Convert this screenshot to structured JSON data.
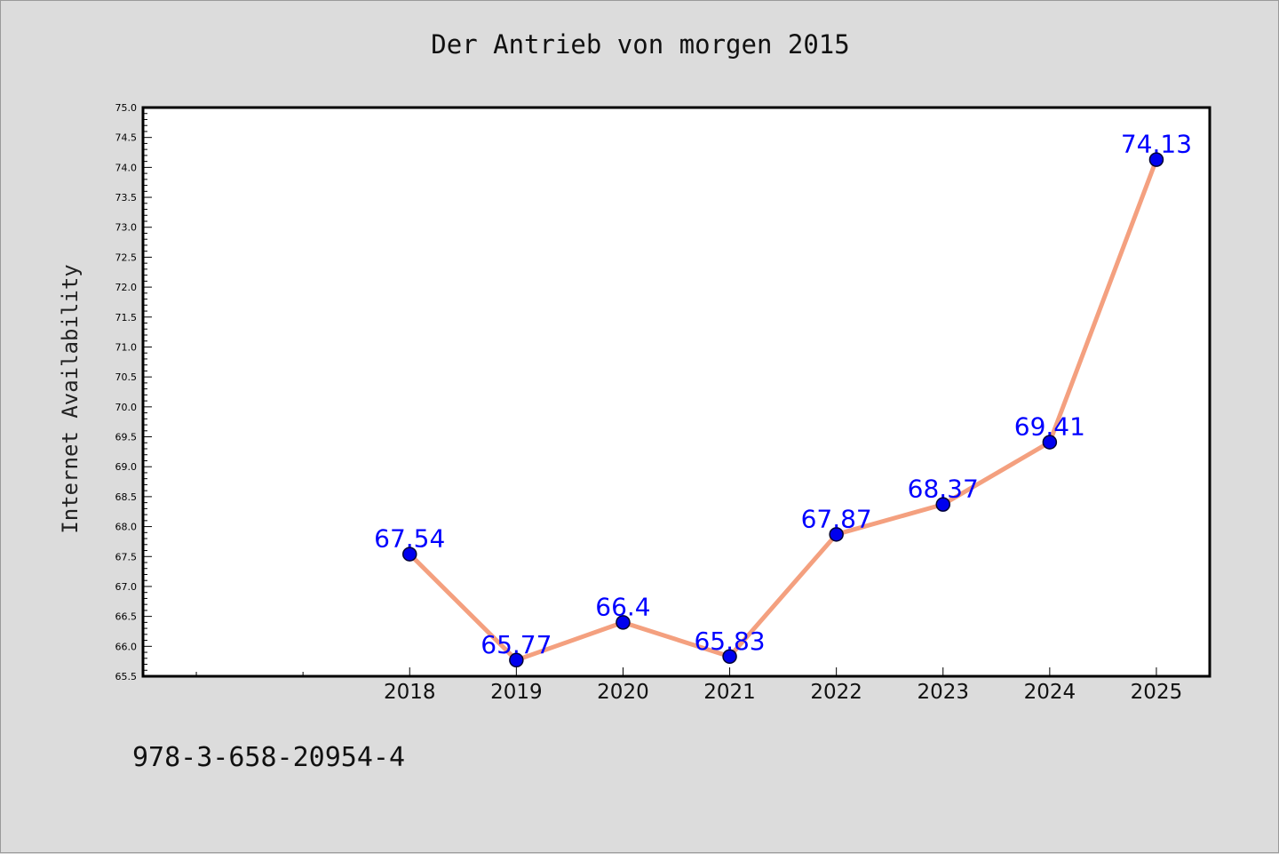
{
  "figure": {
    "title": "Der Antrieb von morgen 2015",
    "footer_text": "978-3-658-20954-4"
  },
  "chart_data": {
    "type": "line",
    "title": "Der Antrieb von morgen 2015",
    "xlabel": "",
    "ylabel": "Internet Availability",
    "x": [
      2018,
      2019,
      2020,
      2021,
      2022,
      2023,
      2024,
      2025
    ],
    "x_tick_labels": [
      "2018",
      "2019",
      "2020",
      "2021",
      "2022",
      "2023",
      "2024",
      "2025"
    ],
    "x_minor_ticks": [
      2016,
      2017
    ],
    "xlim": [
      2015.5,
      2025.5
    ],
    "series": [
      {
        "values": [
          67.54,
          65.77,
          66.4,
          65.83,
          67.87,
          68.37,
          69.41,
          74.13
        ],
        "data_labels": [
          "67.54",
          "65.77",
          "66.4",
          "65.83",
          "67.87",
          "68.37",
          "69.41",
          "74.13"
        ]
      }
    ],
    "ylim": [
      65.5,
      75.0
    ],
    "y_tick_step": 0.5,
    "y_tick_labels": [
      "65.5",
      "66.0",
      "66.5",
      "67.0",
      "67.5",
      "68.0",
      "68.5",
      "69.0",
      "69.5",
      "70.0",
      "70.5",
      "71.0",
      "71.5",
      "72.0",
      "72.5",
      "73.0",
      "73.5",
      "74.0",
      "74.5",
      "75.0"
    ],
    "grid": false,
    "legend": "none",
    "colors": {
      "line": "#f4a07f",
      "marker": "#0000ee",
      "marker_edge": "#000033",
      "data_label": "#0000ff",
      "plot_background": "#ffffff",
      "frame": "#000000"
    }
  }
}
